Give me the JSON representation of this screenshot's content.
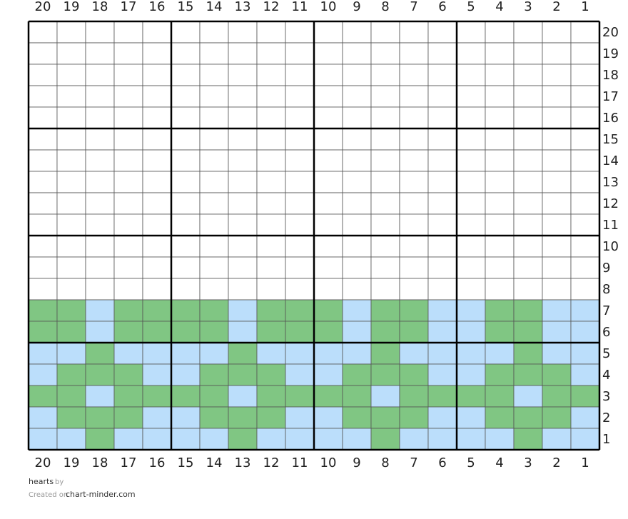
{
  "columns": [
    "20",
    "19",
    "18",
    "17",
    "16",
    "15",
    "14",
    "13",
    "12",
    "11",
    "10",
    "9",
    "8",
    "7",
    "6",
    "5",
    "4",
    "3",
    "2",
    "1"
  ],
  "palette": [
    "#ffffff",
    "#80c683",
    "#bbdefb"
  ],
  "grid": {
    "rows": [
      {
        "label": "20",
        "cells": [
          0,
          0,
          0,
          0,
          0,
          0,
          0,
          0,
          0,
          0,
          0,
          0,
          0,
          0,
          0,
          0,
          0,
          0,
          0,
          0
        ]
      },
      {
        "label": "19",
        "cells": [
          0,
          0,
          0,
          0,
          0,
          0,
          0,
          0,
          0,
          0,
          0,
          0,
          0,
          0,
          0,
          0,
          0,
          0,
          0,
          0
        ]
      },
      {
        "label": "18",
        "cells": [
          0,
          0,
          0,
          0,
          0,
          0,
          0,
          0,
          0,
          0,
          0,
          0,
          0,
          0,
          0,
          0,
          0,
          0,
          0,
          0
        ]
      },
      {
        "label": "17",
        "cells": [
          0,
          0,
          0,
          0,
          0,
          0,
          0,
          0,
          0,
          0,
          0,
          0,
          0,
          0,
          0,
          0,
          0,
          0,
          0,
          0
        ]
      },
      {
        "label": "16",
        "cells": [
          0,
          0,
          0,
          0,
          0,
          0,
          0,
          0,
          0,
          0,
          0,
          0,
          0,
          0,
          0,
          0,
          0,
          0,
          0,
          0
        ]
      },
      {
        "label": "15",
        "cells": [
          0,
          0,
          0,
          0,
          0,
          0,
          0,
          0,
          0,
          0,
          0,
          0,
          0,
          0,
          0,
          0,
          0,
          0,
          0,
          0
        ]
      },
      {
        "label": "14",
        "cells": [
          0,
          0,
          0,
          0,
          0,
          0,
          0,
          0,
          0,
          0,
          0,
          0,
          0,
          0,
          0,
          0,
          0,
          0,
          0,
          0
        ]
      },
      {
        "label": "13",
        "cells": [
          0,
          0,
          0,
          0,
          0,
          0,
          0,
          0,
          0,
          0,
          0,
          0,
          0,
          0,
          0,
          0,
          0,
          0,
          0,
          0
        ]
      },
      {
        "label": "12",
        "cells": [
          0,
          0,
          0,
          0,
          0,
          0,
          0,
          0,
          0,
          0,
          0,
          0,
          0,
          0,
          0,
          0,
          0,
          0,
          0,
          0
        ]
      },
      {
        "label": "11",
        "cells": [
          0,
          0,
          0,
          0,
          0,
          0,
          0,
          0,
          0,
          0,
          0,
          0,
          0,
          0,
          0,
          0,
          0,
          0,
          0,
          0
        ]
      },
      {
        "label": "10",
        "cells": [
          0,
          0,
          0,
          0,
          0,
          0,
          0,
          0,
          0,
          0,
          0,
          0,
          0,
          0,
          0,
          0,
          0,
          0,
          0,
          0
        ]
      },
      {
        "label": "9",
        "cells": [
          0,
          0,
          0,
          0,
          0,
          0,
          0,
          0,
          0,
          0,
          0,
          0,
          0,
          0,
          0,
          0,
          0,
          0,
          0,
          0
        ]
      },
      {
        "label": "8",
        "cells": [
          0,
          0,
          0,
          0,
          0,
          0,
          0,
          0,
          0,
          0,
          0,
          0,
          0,
          0,
          0,
          0,
          0,
          0,
          0,
          0
        ]
      },
      {
        "label": "7",
        "cells": [
          1,
          1,
          2,
          1,
          1,
          1,
          1,
          2,
          1,
          1,
          1,
          2,
          1,
          1,
          2,
          2,
          1,
          1,
          2,
          2
        ]
      },
      {
        "label": "6",
        "cells": [
          1,
          1,
          2,
          1,
          1,
          1,
          1,
          2,
          1,
          1,
          1,
          2,
          1,
          1,
          2,
          2,
          1,
          1,
          2,
          2
        ]
      },
      {
        "label": "5",
        "cells": [
          2,
          2,
          1,
          2,
          2,
          2,
          2,
          1,
          2,
          2,
          2,
          2,
          1,
          2,
          2,
          2,
          2,
          1,
          2,
          2
        ]
      },
      {
        "label": "4",
        "cells": [
          2,
          1,
          1,
          1,
          2,
          2,
          1,
          1,
          1,
          2,
          2,
          1,
          1,
          1,
          2,
          2,
          1,
          1,
          1,
          2
        ]
      },
      {
        "label": "3",
        "cells": [
          1,
          1,
          2,
          1,
          1,
          1,
          1,
          2,
          1,
          1,
          1,
          1,
          2,
          1,
          1,
          1,
          1,
          2,
          1,
          1
        ]
      },
      {
        "label": "2",
        "cells": [
          2,
          1,
          1,
          1,
          2,
          2,
          1,
          1,
          1,
          2,
          2,
          1,
          1,
          1,
          2,
          2,
          1,
          1,
          1,
          2
        ]
      },
      {
        "label": "1",
        "cells": [
          2,
          2,
          1,
          2,
          2,
          2,
          2,
          1,
          2,
          2,
          2,
          2,
          1,
          2,
          2,
          2,
          2,
          1,
          2,
          2
        ]
      }
    ]
  },
  "footer": {
    "name": "hearts",
    "by": "by",
    "created": "Created on",
    "site": "chart-minder.com"
  }
}
